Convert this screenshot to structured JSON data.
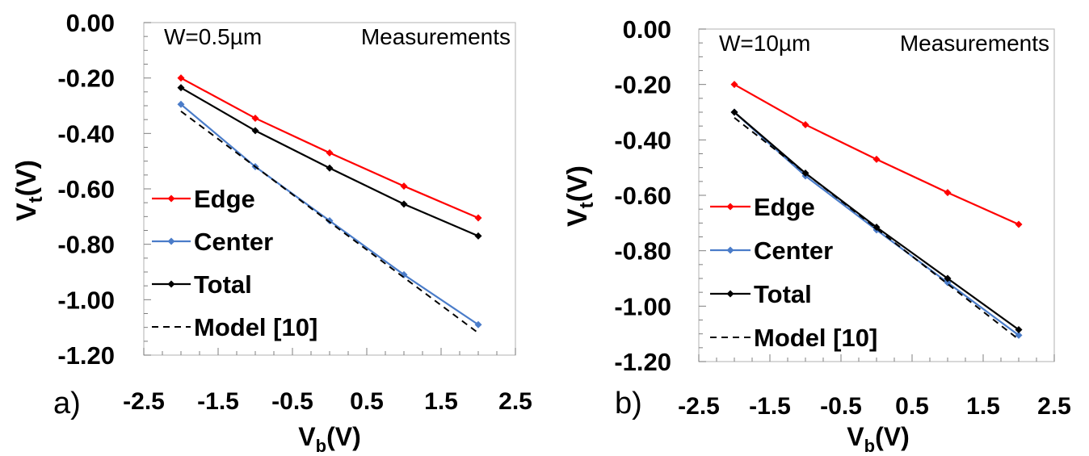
{
  "chart_data": [
    {
      "type": "line",
      "panel_label": "a)",
      "annotation": "W=0.5µm",
      "annotation_right": "Measurements",
      "xlabel": "V",
      "xlabel_sub": "b",
      "xlabel_suffix": "(V)",
      "ylabel": "V",
      "ylabel_sub": "t",
      "ylabel_suffix": "(V)",
      "xlim": [
        -2.5,
        2.5
      ],
      "ylim": [
        -1.2,
        0.0
      ],
      "x_ticks": [
        "-2.5",
        "-1.5",
        "-0.5",
        "0.5",
        "1.5",
        "2.5"
      ],
      "y_ticks": [
        "0.00",
        "-0.20",
        "-0.40",
        "-0.60",
        "-0.80",
        "-1.00",
        "-1.20"
      ],
      "legend_position": "bottom-left",
      "x": [
        -2,
        -1,
        0,
        1,
        2
      ],
      "series": [
        {
          "name": "Edge",
          "color": "#ff0000",
          "style": "solid-marker",
          "values": [
            -0.2,
            -0.345,
            -0.47,
            -0.59,
            -0.705
          ]
        },
        {
          "name": "Center",
          "color": "#4a7cc9",
          "style": "solid-marker",
          "values": [
            -0.295,
            -0.52,
            -0.715,
            -0.91,
            -1.09
          ]
        },
        {
          "name": "Total",
          "color": "#000000",
          "style": "solid-marker",
          "values": [
            -0.235,
            -0.39,
            -0.525,
            -0.655,
            -0.77
          ]
        },
        {
          "name": "Model [10]",
          "color": "#000000",
          "style": "dashed",
          "values": [
            -0.32,
            -0.52,
            -0.72,
            -0.92,
            -1.12
          ]
        }
      ]
    },
    {
      "type": "line",
      "panel_label": "b)",
      "annotation": "W=10µm",
      "annotation_right": "Measurements",
      "xlabel": "V",
      "xlabel_sub": "b",
      "xlabel_suffix": "(V)",
      "ylabel": "V",
      "ylabel_sub": "t",
      "ylabel_suffix": "(V)",
      "xlim": [
        -2.5,
        2.5
      ],
      "ylim": [
        -1.2,
        0.0
      ],
      "x_ticks": [
        "-2.5",
        "-1.5",
        "-0.5",
        "0.5",
        "1.5",
        "2.5"
      ],
      "y_ticks": [
        "0.00",
        "-0.20",
        "-0.40",
        "-0.60",
        "-0.80",
        "-1.00",
        "-1.20"
      ],
      "legend_position": "bottom-left",
      "x": [
        -2,
        -1,
        0,
        1,
        2
      ],
      "series": [
        {
          "name": "Edge",
          "color": "#ff0000",
          "style": "solid-marker",
          "values": [
            -0.2,
            -0.345,
            -0.47,
            -0.59,
            -0.705
          ]
        },
        {
          "name": "Center",
          "color": "#4a7cc9",
          "style": "solid-marker",
          "values": [
            -0.3,
            -0.53,
            -0.725,
            -0.915,
            -1.105
          ]
        },
        {
          "name": "Total",
          "color": "#000000",
          "style": "solid-marker",
          "values": [
            -0.3,
            -0.52,
            -0.715,
            -0.9,
            -1.085
          ]
        },
        {
          "name": "Model [10]",
          "color": "#000000",
          "style": "dashed",
          "values": [
            -0.32,
            -0.52,
            -0.72,
            -0.92,
            -1.12
          ]
        }
      ]
    }
  ]
}
